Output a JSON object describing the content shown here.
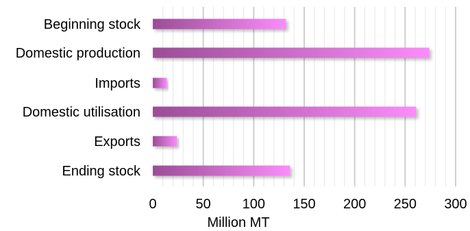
{
  "chart_data": {
    "type": "bar",
    "orientation": "horizontal",
    "categories": [
      "Beginning stock",
      "Domestic production",
      "Imports",
      "Domestic utilisation",
      "Exports",
      "Ending stock"
    ],
    "values": [
      132,
      274,
      14,
      261,
      24,
      136
    ],
    "xlabel": "Million MT",
    "ylabel": "",
    "xlim": [
      0,
      300
    ],
    "xticks": [
      0,
      50,
      100,
      150,
      200,
      250,
      300
    ],
    "grid": "vertical",
    "legend": "none",
    "colors": {
      "bar_start": "#9b4d96",
      "bar_end": "#fb8cfb",
      "grid_major": "#cfcfcf",
      "grid_minor": "#e6e6e6"
    }
  }
}
